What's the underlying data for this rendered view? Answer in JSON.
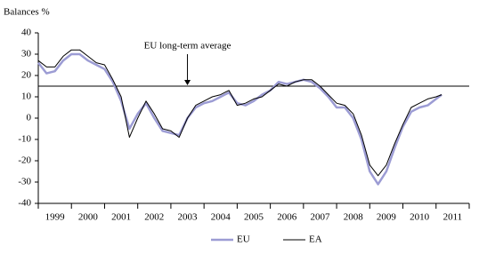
{
  "chart_data": {
    "type": "line",
    "y_label": "Balances %",
    "x": [
      1999.0,
      1999.25,
      1999.5,
      1999.75,
      2000.0,
      2000.25,
      2000.5,
      2000.75,
      2001.0,
      2001.25,
      2001.5,
      2001.75,
      2002.0,
      2002.25,
      2002.5,
      2002.75,
      2003.0,
      2003.25,
      2003.5,
      2003.75,
      2004.0,
      2004.25,
      2004.5,
      2004.75,
      2005.0,
      2005.25,
      2005.5,
      2005.75,
      2006.0,
      2006.25,
      2006.5,
      2006.75,
      2007.0,
      2007.25,
      2007.5,
      2007.75,
      2008.0,
      2008.25,
      2008.5,
      2008.75,
      2009.0,
      2009.25,
      2009.5,
      2009.75,
      2010.0,
      2010.25,
      2010.5,
      2010.75,
      2011.0,
      2011.17
    ],
    "series": [
      {
        "name": "EU",
        "color": "#9c9cd4",
        "values": [
          26,
          21,
          22,
          27,
          30,
          30,
          27,
          25,
          23,
          17,
          8,
          -5,
          2,
          7,
          0,
          -6,
          -7,
          -8,
          0,
          5,
          7,
          8,
          10,
          12,
          7,
          6,
          8,
          11,
          13,
          17,
          16,
          17,
          18,
          17,
          14,
          10,
          5,
          5,
          0,
          -10,
          -25,
          -31,
          -25,
          -14,
          -4,
          3,
          5,
          6,
          9,
          11
        ]
      },
      {
        "name": "EA",
        "color": "#000000",
        "values": [
          27,
          24,
          24,
          29,
          32,
          32,
          29,
          26,
          25,
          18,
          10,
          -9,
          0,
          8,
          2,
          -5,
          -6,
          -9,
          0,
          6,
          8,
          10,
          11,
          13,
          6,
          7,
          9,
          10,
          13,
          16,
          15,
          17,
          18,
          18,
          15,
          11,
          7,
          6,
          2,
          -8,
          -22,
          -27,
          -22,
          -12,
          -3,
          5,
          7,
          9,
          10,
          11
        ]
      }
    ],
    "reference_line": {
      "value": 15,
      "label": "EU long-term average",
      "x": 2003.5
    },
    "xlim": [
      1999,
      2012
    ],
    "xticks": [
      {
        "value": 1999.5,
        "label": "1999"
      },
      {
        "value": 2000.5,
        "label": "2000"
      },
      {
        "value": 2001.5,
        "label": "2001"
      },
      {
        "value": 2002.5,
        "label": "2002"
      },
      {
        "value": 2003.5,
        "label": "2003"
      },
      {
        "value": 2004.5,
        "label": "2004"
      },
      {
        "value": 2005.5,
        "label": "2005"
      },
      {
        "value": 2006.5,
        "label": "2006"
      },
      {
        "value": 2007.5,
        "label": "2007"
      },
      {
        "value": 2008.5,
        "label": "2008"
      },
      {
        "value": 2009.5,
        "label": "2009"
      },
      {
        "value": 2010.5,
        "label": "2010"
      },
      {
        "value": 2011.5,
        "label": "2011"
      }
    ],
    "ylim": [
      -40,
      40
    ],
    "yticks": [
      -40,
      -30,
      -20,
      -10,
      0,
      10,
      20,
      30,
      40
    ],
    "legend": "bottom"
  }
}
